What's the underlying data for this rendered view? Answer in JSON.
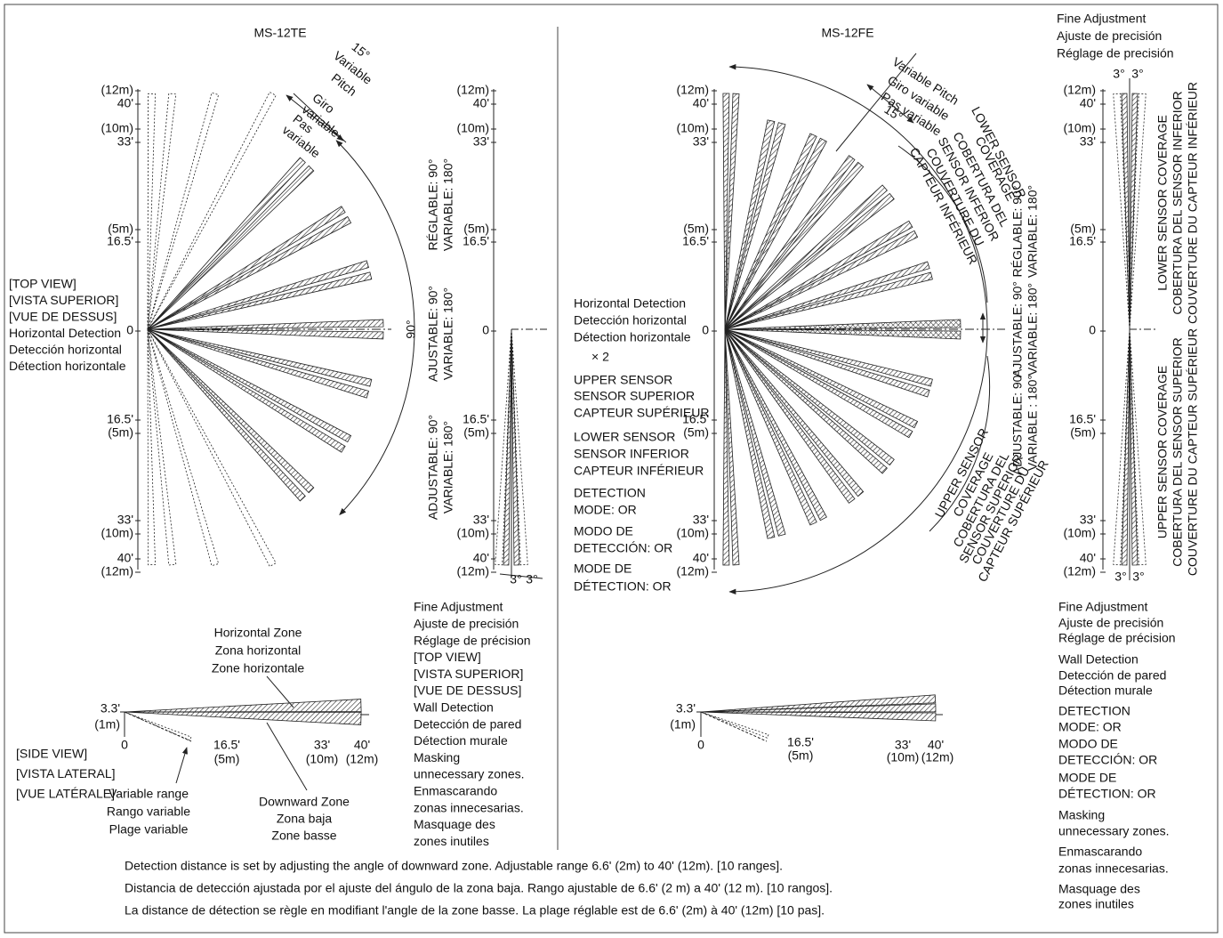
{
  "left": {
    "title": "MS-12TE",
    "pitch_label": [
      "15°",
      "Variable",
      "Pitch",
      "Giro",
      "variable",
      "Pas",
      "variable"
    ],
    "top_view": {
      "axis_labels": [
        "(12m)",
        "40'",
        "(10m)",
        "33'",
        "(5m)",
        "16.5'",
        "0",
        "16.5'",
        "(5m)",
        "33'",
        "(10m)",
        "40'",
        "(12m)"
      ],
      "view_label": [
        "[TOP VIEW]",
        "[VISTA SUPERIOR]",
        "[VUE DE DESSUS]",
        "Horizontal Detection",
        "Detección horizontal",
        "Détection horizontale"
      ],
      "angle": "90°",
      "range_labels": [
        [
          "RÉGLABLE: 90°",
          "VARIABLE: 180°"
        ],
        [
          "AJUSTABLE: 90°",
          "VARIABLE: 180°"
        ],
        [
          "ADJUSTABLE: 90°",
          "VARIABLE: 180°"
        ]
      ]
    },
    "wall_view": {
      "axis_labels": [
        "(12m)",
        "40'",
        "(10m)",
        "33'",
        "(5m)",
        "16.5'",
        "0",
        "16.5'",
        "(5m)",
        "33'",
        "(10m)",
        "40'",
        "(12m)"
      ],
      "angles": [
        "3°",
        "3°"
      ],
      "notes": [
        "Fine Adjustment",
        "Ajuste de precisión",
        "Réglage de précision",
        "[TOP VIEW]",
        "[VISTA SUPERIOR]",
        "[VUE DE DESSUS]",
        "Wall Detection",
        "Detección de pared",
        "Détection murale",
        "Masking",
        "unnecessary zones.",
        "Enmascarando",
        "zonas innecesarias.",
        "Masquage des",
        "zones inutiles"
      ]
    },
    "side_view": {
      "horizontal_zone": [
        "Horizontal Zone",
        "Zona horizontal",
        "Zone horizontale"
      ],
      "axis_labels": [
        "3.3'",
        "(1m)",
        "0",
        "16.5'",
        "(5m)",
        "33'",
        "(10m)",
        "40'",
        "(12m)"
      ],
      "view_label": [
        "[SIDE VIEW]",
        "[VISTA LATERAL]",
        "[VUE LATÉRALE]"
      ],
      "variable_range": [
        "Variable range",
        "Rango variable",
        "Plage variable"
      ],
      "downward_zone": [
        "Downward Zone",
        "Zona baja",
        "Zone basse"
      ]
    }
  },
  "right": {
    "title": "MS-12FE",
    "pitch_label": [
      "Variable Pitch",
      "Giro variable",
      "Pas variable",
      "15°"
    ],
    "lower_coverage": [
      "LOWER SENSOR",
      "COVERAGE",
      "COBERTURA DEL",
      "SENSOR INFERIOR",
      "COUVERTURE DU",
      "CAPTEUR INFÉRIEUR"
    ],
    "upper_coverage": [
      "UPPER SENSOR",
      "COVERAGE",
      "COBERTURA DEL",
      "SENSOR SUPERIOR",
      "COUVERTURE DU",
      "CAPTEUR SUPÉRIEUR"
    ],
    "range_labels": [
      [
        "RÉGLABLE: 90°",
        "VARIABLE: 180°"
      ],
      [
        "AJUSTABLE: 90°",
        "VARIABLE: 180°"
      ],
      [
        "ADJUSTABLE: 90°",
        "VARIABLE : 180°"
      ]
    ],
    "top_view": {
      "axis_labels": [
        "(12m)",
        "40'",
        "(10m)",
        "33'",
        "(5m)",
        "16.5'",
        "0",
        "16.5'",
        "(5m)",
        "33'",
        "(10m)",
        "40'",
        "(12m)"
      ],
      "legend": [
        "Horizontal Detection",
        "Detección horizontal",
        "Détection horizontale",
        "× 2",
        "UPPER SENSOR",
        "SENSOR SUPERIOR",
        "CAPTEUR SUPÉRIEUR",
        "LOWER SENSOR",
        "SENSOR INFERIOR",
        "CAPTEUR INFÉRIEUR",
        "DETECTION",
        "MODE: OR",
        "MODO DE",
        "DETECCIÓN: OR",
        "MODE DE",
        "DÉTECTION: OR"
      ]
    },
    "wall_view": {
      "header": [
        "Fine Adjustment",
        "Ajuste de precisión",
        "Réglage de precisión"
      ],
      "axis_labels": [
        "(12m)",
        "40'",
        "(10m)",
        "33'",
        "(5m)",
        "16.5'",
        "0",
        "16.5'",
        "(5m)",
        "33'",
        "(10m)",
        "40'",
        "(12m)"
      ],
      "top_angles": [
        "3°",
        "3°"
      ],
      "bottom_angles": [
        "3°",
        "3°"
      ],
      "lower_coverage": [
        "LOWER SENSOR COVERAGE",
        "COBERTURA DEL SENSOR INFERIOR",
        "COUVERTURE DU CAPTEUR INFÉRIEUR"
      ],
      "upper_coverage": [
        "UPPER SENSOR COVERAGE",
        "COBERTURA DEL SENSOR SUPERIOR",
        "COUVERTURE DU CAPTEUR SUPÉRIEUR"
      ],
      "notes": [
        "Fine Adjustment",
        "Ajuste de precisión",
        "Réglage de précision",
        "Wall Detection",
        "Detección de pared",
        "Détection murale",
        "DETECTION",
        "MODE: OR",
        "MODO DE",
        "DETECCIÓN: OR",
        "MODE DE",
        "DÉTECTION: OR",
        "Masking",
        "unnecessary zones.",
        "Enmascarando",
        "zonas innecesarias.",
        "Masquage des",
        "zones inutiles"
      ]
    },
    "side_view": {
      "axis_labels": [
        "3.3'",
        "(1m)",
        "0",
        "16.5'",
        "(5m)",
        "33'",
        "(10m)",
        "40'",
        "(12m)"
      ]
    }
  },
  "footer": [
    "Detection distance is set by adjusting the angle of downward zone. Adjustable range 6.6' (2m) to 40' (12m). [10 ranges].",
    "Distancia de detección ajustada por el ajuste del ángulo de la zona baja. Rango ajustable de 6.6' (2 m) a 40' (12 m). [10 rangos].",
    "La distance de détection se règle en modifiant l'angle de la zone basse. La plage réglable est de 6.6' (2m) à 40' (12m) [10 pas]."
  ]
}
